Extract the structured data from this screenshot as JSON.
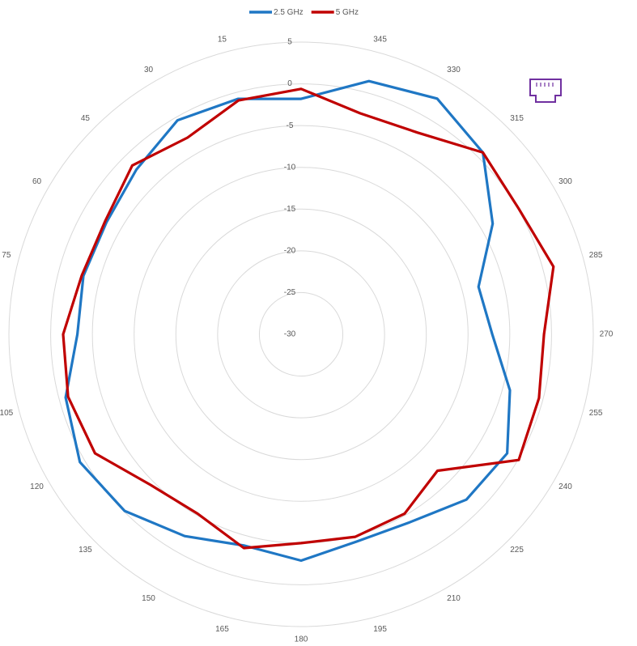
{
  "chart_data": {
    "type": "polar",
    "theta": [
      0,
      15,
      30,
      45,
      60,
      75,
      90,
      105,
      120,
      135,
      150,
      165,
      180,
      195,
      210,
      225,
      240,
      255,
      270,
      285,
      300,
      315,
      330,
      345
    ],
    "series": [
      {
        "name": "2.5 GHz",
        "color": "#1f77c4",
        "values": [
          -1.8,
          -0.8,
          -0.4,
          -2.1,
          -3.1,
          -3.0,
          -3.2,
          -0.8,
          0.6,
          -0.1,
          -2.1,
          -3.8,
          -2.9,
          -4.3,
          -4.0,
          -2.0,
          -1.5,
          -4.1,
          -7.1,
          -8.0,
          -3.5,
          0.8,
          2.6,
          1.4
        ]
      },
      {
        "name": "5 GHz",
        "color": "#c00000",
        "values": [
          -0.6,
          -1.0,
          -2.8,
          -1.4,
          -2.9,
          -2.8,
          -1.5,
          -1.1,
          -1.5,
          -4.5,
          -5.2,
          -3.5,
          -5.0,
          -4.9,
          -5.2,
          -6.9,
          0.1,
          -0.5,
          -0.9,
          1.3,
          0.1,
          0.8,
          -2.1,
          -2.6
        ]
      }
    ],
    "rlim": [
      -30,
      5
    ],
    "rticks": [
      5,
      0,
      -5,
      -10,
      -15,
      -20,
      -25,
      -30
    ],
    "thetaticks": [
      15,
      30,
      45,
      60,
      75,
      105,
      120,
      135,
      150,
      165,
      180,
      195,
      210,
      225,
      240,
      255,
      270,
      285,
      300,
      315,
      330,
      345
    ],
    "direction": "counterclockwise",
    "grid": true
  }
}
